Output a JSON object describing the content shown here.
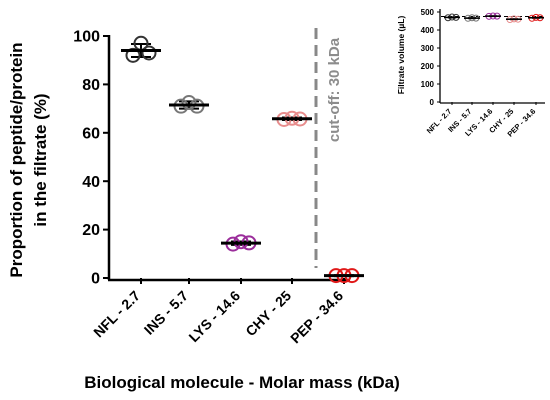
{
  "chart_data": [
    {
      "type": "scatter",
      "ylabel": [
        "Proportion of peptide/protein",
        "in the filtrate (%)"
      ],
      "xlabel": "Biological molecule - Molar mass (kDa)",
      "categories": [
        "NFL - 2.7",
        "INS - 5.7",
        "LYS - 14.6",
        "CHY - 25",
        "PEP - 34.6"
      ],
      "ylim": [
        0,
        100
      ],
      "yticks": [
        0,
        20,
        40,
        60,
        80,
        100
      ],
      "grid": false,
      "series": [
        {
          "category": "NFL - 2.7",
          "color": "#333333",
          "points": [
            92,
            97,
            93
          ],
          "mean": 94,
          "sd": 2.7
        },
        {
          "category": "INS - 5.7",
          "color": "#777777",
          "points": [
            71,
            72.5,
            71
          ],
          "mean": 71.5,
          "sd": 1.5
        },
        {
          "category": "LYS - 14.6",
          "color": "#9b2d9b",
          "points": [
            14,
            15,
            14.5
          ],
          "mean": 14.4,
          "sd": 0.7
        },
        {
          "category": "CHY - 25",
          "color": "#e88d8d",
          "points": [
            65.5,
            66,
            65.7
          ],
          "mean": 65.8,
          "sd": 0.5
        },
        {
          "category": "PEP - 34.6",
          "color": "#e01818",
          "points": [
            1,
            1,
            1
          ],
          "mean": 1,
          "sd": 0.2
        }
      ],
      "annotations": [
        {
          "text": "cut-off: 30 kDa",
          "between": [
            "CHY - 25",
            "PEP - 34.6"
          ],
          "style": "dashed-vertical-line"
        }
      ]
    },
    {
      "type": "scatter",
      "ylabel": "Filtrate volume (µL)",
      "xlabel": "",
      "categories": [
        "NFL - 2.7",
        "INS - 5.7",
        "LYS - 14.6",
        "CHY - 25",
        "PEP - 34.6"
      ],
      "ylim": [
        0,
        500
      ],
      "yticks": [
        0,
        100,
        200,
        300,
        400,
        500
      ],
      "reference_line": 475,
      "grid": false,
      "series": [
        {
          "category": "NFL - 2.7",
          "color": "#333333",
          "points": [
            468,
            472,
            470
          ],
          "mean": 470,
          "sd": 3
        },
        {
          "category": "INS - 5.7",
          "color": "#777777",
          "points": [
            465,
            468,
            466
          ],
          "mean": 466,
          "sd": 3
        },
        {
          "category": "LYS - 14.6",
          "color": "#9b2d9b",
          "points": [
            476,
            478,
            477
          ],
          "mean": 477,
          "sd": 2
        },
        {
          "category": "CHY - 25",
          "color": "#e88d8d",
          "points": [
            458,
            462,
            460
          ],
          "mean": 460,
          "sd": 3
        },
        {
          "category": "PEP - 34.6",
          "color": "#e01818",
          "points": [
            465,
            470,
            468
          ],
          "mean": 468,
          "sd": 3
        }
      ]
    }
  ]
}
